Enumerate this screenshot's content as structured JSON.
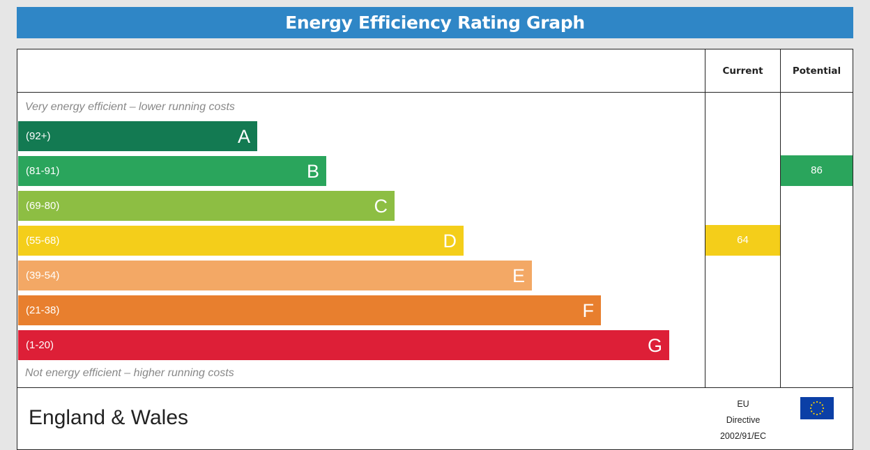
{
  "title": "Energy Efficiency Rating Graph",
  "columns": {
    "current": "Current",
    "potential": "Potential"
  },
  "notes": {
    "top": "Very energy efficient – lower running costs",
    "bottom": "Not energy efficient – higher running costs"
  },
  "footer": {
    "region": "England & Wales",
    "directive_line1": "EU",
    "directive_line2": "Directive",
    "directive_line3": "2002/91/EC"
  },
  "icons": {
    "flag": "eu-flag-icon"
  },
  "chart_data": {
    "type": "bar",
    "orientation": "horizontal",
    "bands": [
      {
        "letter": "A",
        "range": "(92+)",
        "color": "#137a52"
      },
      {
        "letter": "B",
        "range": "(81-91)",
        "color": "#2aa55c"
      },
      {
        "letter": "C",
        "range": "(69-80)",
        "color": "#8dbe43"
      },
      {
        "letter": "D",
        "range": "(55-68)",
        "color": "#f4ce1a"
      },
      {
        "letter": "E",
        "range": "(39-54)",
        "color": "#f3a865"
      },
      {
        "letter": "F",
        "range": "(21-38)",
        "color": "#e87f2e"
      },
      {
        "letter": "G",
        "range": "(1-20)",
        "color": "#dd1f37"
      }
    ],
    "current": {
      "value": "64",
      "band": "D",
      "color": "#f4ce1a"
    },
    "potential": {
      "value": "86",
      "band": "B",
      "color": "#2aa55c"
    }
  }
}
